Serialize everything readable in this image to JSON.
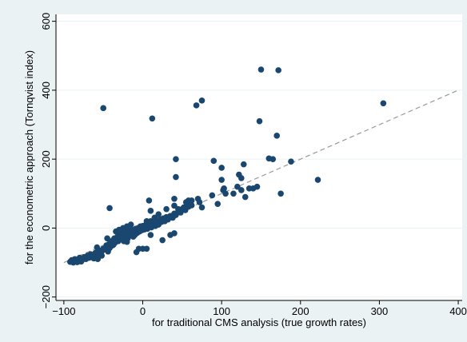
{
  "chart_data": {
    "type": "scatter",
    "xlabel": "for traditional CMS analysis (true growth rates)",
    "ylabel": "for the econometric approach (Tornqvist index)",
    "xlim": [
      -110,
      405
    ],
    "ylim": [
      -210,
      620
    ],
    "x_ticks": [
      -100,
      0,
      100,
      200,
      300,
      400
    ],
    "y_ticks": [
      -200,
      0,
      200,
      400,
      600
    ],
    "x_tick_labels": [
      "−100",
      "0",
      "100",
      "200",
      "300",
      "400"
    ],
    "y_tick_labels": [
      "−200",
      "0",
      "200",
      "400",
      "600"
    ],
    "grid": "horizontal",
    "colors": {
      "background": "#eaf2f3",
      "plot_area": "#ffffff",
      "marker": "#1a476f",
      "reference_line": "#999999",
      "grid": "#eaf2f3"
    },
    "reference_line": {
      "style": "dashed",
      "x": [
        -100,
        400
      ],
      "y": [
        -100,
        400
      ]
    },
    "points": [
      [
        -92,
        -98
      ],
      [
        -90,
        -93
      ],
      [
        -88,
        -100
      ],
      [
        -86,
        -90
      ],
      [
        -85,
        -96
      ],
      [
        -83,
        -99
      ],
      [
        -82,
        -92
      ],
      [
        -80,
        -86
      ],
      [
        -78,
        -97
      ],
      [
        -76,
        -91
      ],
      [
        -74,
        -84
      ],
      [
        -72,
        -90
      ],
      [
        -70,
        -80
      ],
      [
        -68,
        -86
      ],
      [
        -66,
        -76
      ],
      [
        -64,
        -83
      ],
      [
        -62,
        -88
      ],
      [
        -60,
        -72
      ],
      [
        -59,
        -80
      ],
      [
        -58,
        -56
      ],
      [
        -57,
        -90
      ],
      [
        -55,
        -65
      ],
      [
        -53,
        -74
      ],
      [
        -52,
        -68
      ],
      [
        -50,
        -60
      ],
      [
        -48,
        -62
      ],
      [
        -46,
        -50
      ],
      [
        -45,
        -56
      ],
      [
        -44,
        -68
      ],
      [
        -43,
        -47
      ],
      [
        -42,
        -58
      ],
      [
        -41,
        -40
      ],
      [
        -40,
        -52
      ],
      [
        -39,
        -45
      ],
      [
        -38,
        -36
      ],
      [
        -37,
        -48
      ],
      [
        -36,
        -30
      ],
      [
        -35,
        -42
      ],
      [
        -34,
        -10
      ],
      [
        -33,
        -35
      ],
      [
        -32,
        -25
      ],
      [
        -31,
        -38
      ],
      [
        -30,
        -28
      ],
      [
        -29,
        -20
      ],
      [
        -28,
        -33
      ],
      [
        -27,
        -24
      ],
      [
        -26,
        -15
      ],
      [
        -25,
        -28
      ],
      [
        -24,
        -38
      ],
      [
        -23,
        -17
      ],
      [
        -22,
        -26
      ],
      [
        -21,
        -10
      ],
      [
        -20,
        -20
      ],
      [
        -19,
        -30
      ],
      [
        -18,
        -14
      ],
      [
        -17,
        -22
      ],
      [
        -16,
        -8
      ],
      [
        -15,
        -18
      ],
      [
        -14,
        -5
      ],
      [
        -13,
        -15
      ],
      [
        -12,
        -25
      ],
      [
        -11,
        -8
      ],
      [
        -10,
        -12
      ],
      [
        -9,
        -2
      ],
      [
        -8,
        -8
      ],
      [
        -7,
        -14
      ],
      [
        -6,
        0
      ],
      [
        -5,
        -4
      ],
      [
        -4,
        -10
      ],
      [
        -3,
        5
      ],
      [
        -2,
        -2
      ],
      [
        -1,
        -6
      ],
      [
        0,
        6
      ],
      [
        1,
        2
      ],
      [
        2,
        -4
      ],
      [
        3,
        8
      ],
      [
        4,
        3
      ],
      [
        5,
        10
      ],
      [
        6,
        -2
      ],
      [
        7,
        12
      ],
      [
        8,
        5
      ],
      [
        9,
        15
      ],
      [
        10,
        8
      ],
      [
        11,
        2
      ],
      [
        12,
        18
      ],
      [
        14,
        12
      ],
      [
        15,
        20
      ],
      [
        16,
        6
      ],
      [
        18,
        22
      ],
      [
        20,
        15
      ],
      [
        22,
        25
      ],
      [
        24,
        18
      ],
      [
        26,
        28
      ],
      [
        28,
        20
      ],
      [
        30,
        32
      ],
      [
        32,
        25
      ],
      [
        35,
        35
      ],
      [
        38,
        30
      ],
      [
        40,
        42
      ],
      [
        42,
        38
      ],
      [
        45,
        48
      ],
      [
        48,
        45
      ],
      [
        50,
        55
      ],
      [
        52,
        60
      ],
      [
        54,
        52
      ],
      [
        56,
        65
      ],
      [
        58,
        62
      ],
      [
        60,
        70
      ],
      [
        62,
        66
      ],
      [
        55,
        75
      ],
      [
        58,
        80
      ],
      [
        62,
        80
      ],
      [
        70,
        85
      ],
      [
        72,
        75
      ],
      [
        75,
        60
      ],
      [
        88,
        95
      ],
      [
        95,
        70
      ],
      [
        102,
        110
      ],
      [
        105,
        100
      ],
      [
        115,
        100
      ],
      [
        125,
        110
      ],
      [
        130,
        90
      ],
      [
        135,
        115
      ],
      [
        140,
        115
      ],
      [
        145,
        120
      ],
      [
        -60,
        -75
      ],
      [
        -52,
        -80
      ],
      [
        -38,
        -50
      ],
      [
        -36,
        -40
      ],
      [
        -30,
        -5
      ],
      [
        -26,
        -30
      ],
      [
        -45,
        -60
      ],
      [
        -5,
        -60
      ],
      [
        -8,
        -70
      ],
      [
        0,
        -60
      ],
      [
        5,
        -60
      ],
      [
        10,
        -20
      ],
      [
        -45,
        -30
      ],
      [
        -20,
        -40
      ],
      [
        25,
        -35
      ],
      [
        35,
        -20
      ],
      [
        40,
        -15
      ],
      [
        -25,
        0
      ],
      [
        -15,
        10
      ],
      [
        -10,
        -20
      ],
      [
        5,
        20
      ],
      [
        15,
        30
      ],
      [
        20,
        40
      ],
      [
        30,
        55
      ],
      [
        45,
        55
      ],
      [
        20,
        10
      ],
      [
        10,
        20
      ],
      [
        -20,
        5
      ],
      [
        -50,
        348
      ],
      [
        12,
        318
      ],
      [
        68,
        356
      ],
      [
        75,
        370
      ],
      [
        42,
        200
      ],
      [
        42,
        148
      ],
      [
        90,
        195
      ],
      [
        100,
        175
      ],
      [
        100,
        140
      ],
      [
        103,
        115
      ],
      [
        120,
        120
      ],
      [
        122,
        155
      ],
      [
        125,
        145
      ],
      [
        128,
        185
      ],
      [
        148,
        310
      ],
      [
        150,
        460
      ],
      [
        160,
        202
      ],
      [
        165,
        200
      ],
      [
        172,
        458
      ],
      [
        170,
        268
      ],
      [
        175,
        100
      ],
      [
        188,
        193
      ],
      [
        222,
        140
      ],
      [
        305,
        362
      ],
      [
        -42,
        58
      ],
      [
        8,
        80
      ],
      [
        10,
        50
      ],
      [
        40,
        85
      ],
      [
        40,
        65
      ]
    ]
  }
}
